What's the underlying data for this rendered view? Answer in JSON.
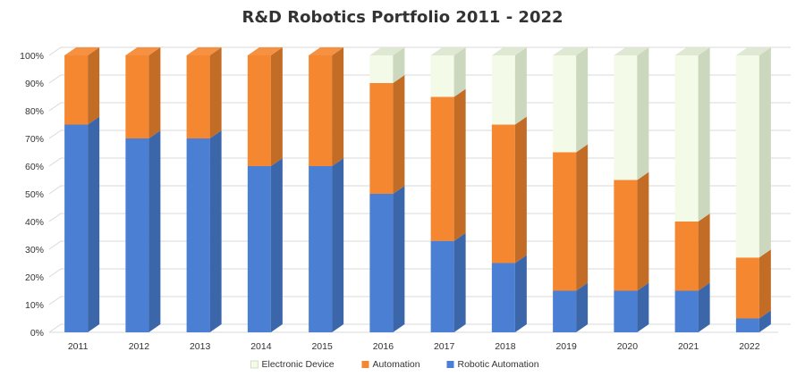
{
  "chart_data": {
    "type": "bar",
    "stacked": true,
    "percent": true,
    "title": "R&D Robotics Portfolio 2011 - 2022",
    "categories": [
      "2011",
      "2012",
      "2013",
      "2014",
      "2015",
      "2016",
      "2017",
      "2018",
      "2019",
      "2020",
      "2021",
      "2022"
    ],
    "y_ticks": [
      "0%",
      "10%",
      "20%",
      "30%",
      "40%",
      "50%",
      "60%",
      "70%",
      "80%",
      "90%",
      "100%"
    ],
    "ylim": [
      0,
      100
    ],
    "grid": true,
    "legend_position": "bottom",
    "series": [
      {
        "name": "Robotic Automation",
        "color": "#4a7fd4",
        "values": [
          75,
          70,
          70,
          60,
          60,
          50,
          33,
          25,
          15,
          15,
          15,
          5
        ]
      },
      {
        "name": "Automation",
        "color": "#f4872f",
        "values": [
          25,
          30,
          30,
          40,
          40,
          40,
          52,
          50,
          50,
          40,
          25,
          22
        ]
      },
      {
        "name": "Electronic Device",
        "color": "#f4fae8",
        "values": [
          0,
          0,
          0,
          0,
          0,
          10,
          15,
          25,
          35,
          45,
          60,
          73
        ]
      }
    ],
    "legend_order": [
      "Electronic Device",
      "Automation",
      "Robotic Automation"
    ]
  }
}
